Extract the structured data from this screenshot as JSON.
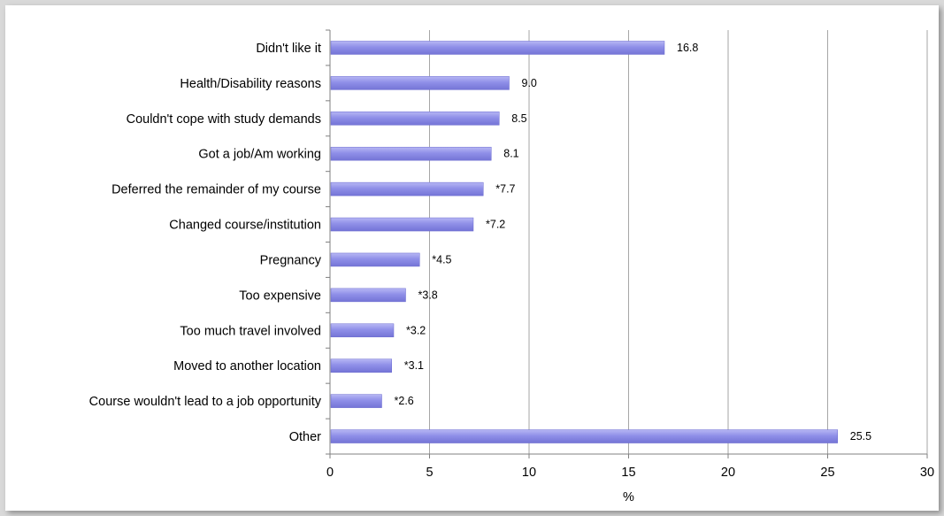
{
  "chart_data": {
    "type": "bar",
    "orientation": "horizontal",
    "categories": [
      "Didn't like it",
      "Health/Disability reasons",
      "Couldn't cope with study demands",
      "Got a job/Am working",
      "Deferred the remainder of my course",
      "Changed course/institution",
      "Pregnancy",
      "Too expensive",
      "Too much travel involved",
      "Moved to another location",
      "Course wouldn't lead to a job opportunity",
      "Other"
    ],
    "values": [
      16.8,
      9.0,
      8.5,
      8.1,
      7.7,
      7.2,
      4.5,
      3.8,
      3.2,
      3.1,
      2.6,
      25.5
    ],
    "data_labels": [
      "16.8",
      "9.0",
      "8.5",
      "8.1",
      "*7.7",
      "*7.2",
      "*4.5",
      "*3.8",
      "*3.2",
      "*3.1",
      "*2.6",
      "25.5"
    ],
    "xlabel": "%",
    "ylabel": "",
    "xlim": [
      0,
      30
    ],
    "xticks": [
      "0",
      "5",
      "10",
      "15",
      "20",
      "25",
      "30"
    ],
    "grid": "vertical",
    "legend": "none",
    "colors": {
      "bar": "#8f8fe8",
      "bar_edge": "#6a6ad0",
      "grid": "#a6a6a6",
      "axis": "#808080"
    }
  }
}
